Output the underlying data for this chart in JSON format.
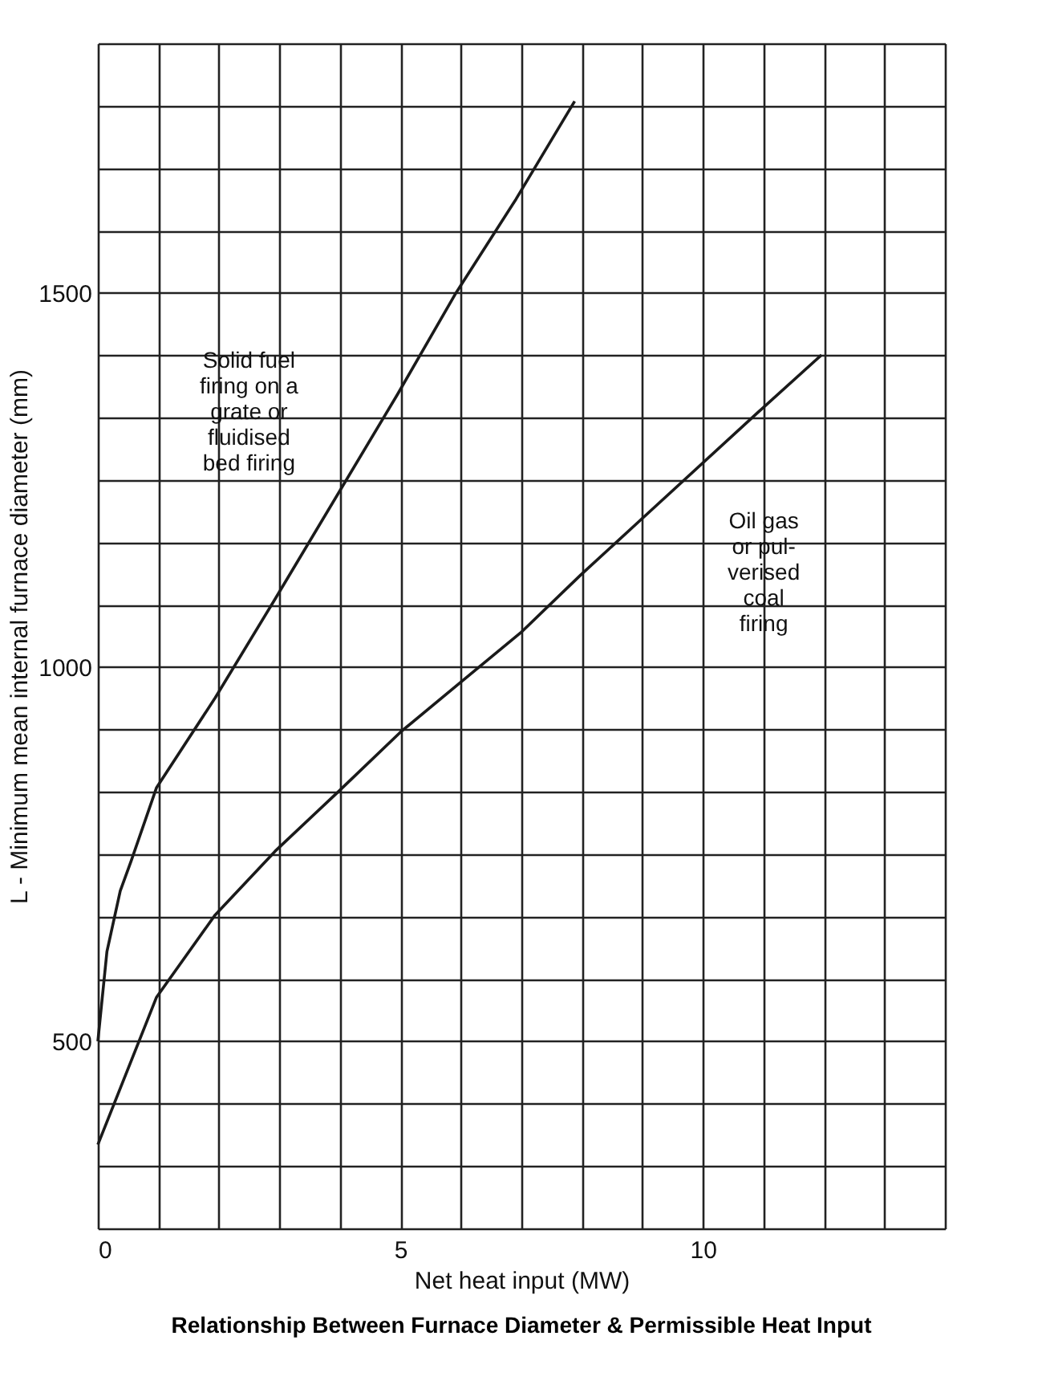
{
  "chart_data": {
    "type": "line",
    "title": "Relationship Between Furnace Diameter & Permissible Heat Input",
    "xlabel": "Net heat input (MW)",
    "ylabel": "L - Minimum mean internal furnace diameter (mm)",
    "xlim": [
      0,
      14
    ],
    "ylim": [
      250,
      1833.3
    ],
    "xticks": [
      0,
      {
        "value": 1,
        "label": null
      },
      {
        "value": 2,
        "label": null
      },
      {
        "value": 3,
        "label": null
      },
      {
        "value": 4,
        "label": null
      },
      5,
      {
        "value": 6,
        "label": null
      },
      {
        "value": 7,
        "label": null
      },
      {
        "value": 8,
        "label": null
      },
      {
        "value": 9,
        "label": null
      },
      10,
      {
        "value": 11,
        "label": null
      },
      {
        "value": 12,
        "label": null
      },
      {
        "value": 13,
        "label": null
      },
      {
        "value": 14,
        "label": null
      }
    ],
    "yticks": [
      {
        "value": 250,
        "label": null
      },
      {
        "value": 333.3,
        "label": null
      },
      {
        "value": 416.7,
        "label": null
      },
      500,
      {
        "value": 583.3,
        "label": null
      },
      {
        "value": 666.7,
        "label": null
      },
      {
        "value": 750,
        "label": null
      },
      {
        "value": 833.3,
        "label": null
      },
      {
        "value": 916.7,
        "label": null
      },
      1000,
      {
        "value": 1083.3,
        "label": null
      },
      {
        "value": 1166.7,
        "label": null
      },
      {
        "value": 1250,
        "label": null
      },
      {
        "value": 1333.3,
        "label": null
      },
      {
        "value": 1416.7,
        "label": null
      },
      1500,
      {
        "value": 1583.3,
        "label": null
      },
      {
        "value": 1666.7,
        "label": null
      },
      {
        "value": 1750,
        "label": null
      },
      {
        "value": 1833.3,
        "label": null
      }
    ],
    "grid": true,
    "line_style": "solid",
    "marker": "none",
    "series": [
      {
        "name": "Solid fuel\nfiring on a\ngrate or\nfluidised\nbed firing",
        "color": "#1a1a1a",
        "x": [
          0,
          0.15,
          0.37,
          0.55,
          0.97,
          1.94,
          2.93,
          4.95,
          5.92,
          6.91,
          7.88
        ],
        "values": [
          500,
          620,
          701,
          741,
          839,
          959,
          1091,
          1364,
          1500,
          1625,
          1756
        ]
      },
      {
        "name": "Oil gas\nor pul-\nverised\ncoal\nfiring",
        "color": "#1a1a1a",
        "x": [
          0,
          0.97,
          1.94,
          2.93,
          3.98,
          5.0,
          5.97,
          6.99,
          7.98,
          8.95,
          10.92,
          11.96
        ],
        "values": [
          362,
          559,
          669,
          754,
          834,
          913,
          978,
          1046,
          1123,
          1195,
          1341,
          1417
        ]
      }
    ]
  }
}
